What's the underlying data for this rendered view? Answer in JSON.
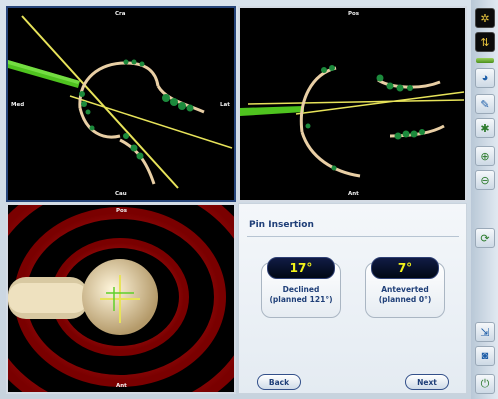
{
  "viewports": {
    "top_left": {
      "label_top": "Cra",
      "label_left": "Med",
      "label_right": "Lat",
      "label_bottom": "Cau"
    },
    "top_right": {
      "label_top": "Pos",
      "label_bottom": "Ant"
    },
    "bottom_left": {
      "label_top": "Pos",
      "label_bottom": "Ant"
    }
  },
  "panel": {
    "title": "Pin Insertion",
    "declined": {
      "value": "17°",
      "caption_line1": "Declined",
      "caption_line2": "(planned 121°)"
    },
    "anteverted": {
      "value": "7°",
      "caption_line1": "Anteverted",
      "caption_line2": "(planned 0°)"
    },
    "back_label": "Back",
    "next_label": "Next"
  },
  "toolbar": {
    "icons": [
      "gear-icon",
      "arrows-icon",
      "rotate-icon",
      "wrench-icon",
      "settings-icon",
      "zoom-in-icon",
      "zoom-out-icon",
      "refresh-icon",
      "export-icon",
      "camera-icon",
      "power-icon"
    ]
  },
  "colors": {
    "accent": "#1f3f78",
    "readout_value": "#f2f21a",
    "pin": "#5fd02a",
    "axis_line": "#e7e35a"
  }
}
